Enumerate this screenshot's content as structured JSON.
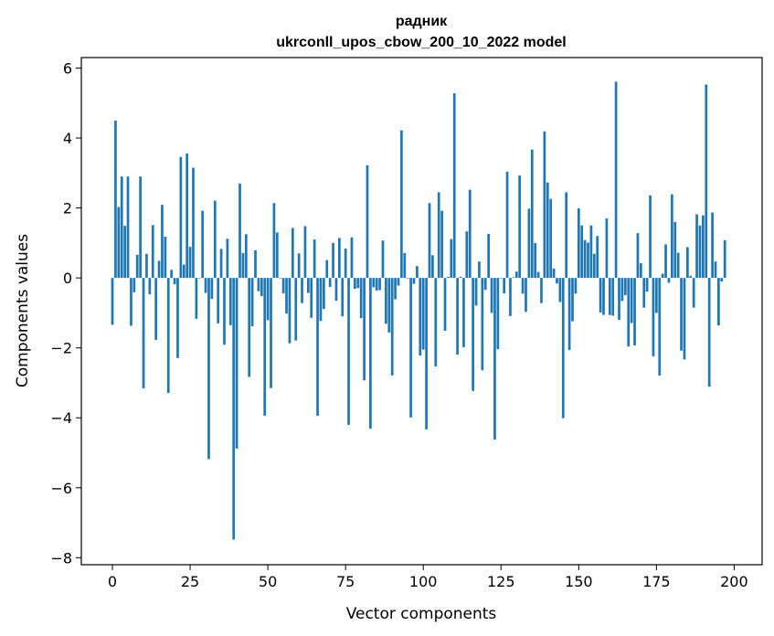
{
  "chart_data": {
    "type": "bar",
    "title": [
      "радник",
      "ukrconll_upos_cbow_200_10_2022 model"
    ],
    "xlabel": "Vector components",
    "ylabel": "Components values",
    "xlim": [
      -10,
      209
    ],
    "ylim": [
      -8.2,
      6.3
    ],
    "xticks": [
      0,
      25,
      50,
      75,
      100,
      125,
      150,
      175,
      200
    ],
    "yticks": [
      -8,
      -6,
      -4,
      -2,
      0,
      2,
      4,
      6
    ],
    "bar_color": "#1f77b4",
    "grid": false,
    "values": [
      -1.34,
      4.5,
      2.03,
      2.9,
      1.49,
      2.9,
      -1.37,
      -0.41,
      0.66,
      2.9,
      -3.16,
      0.69,
      -0.47,
      1.51,
      -1.77,
      0.49,
      2.09,
      1.18,
      -3.29,
      0.23,
      -0.18,
      -2.29,
      3.46,
      0.38,
      3.56,
      0.89,
      3.15,
      -1.17,
      0.0,
      1.92,
      -0.43,
      -5.18,
      -0.6,
      2.21,
      -1.3,
      0.83,
      -1.91,
      1.12,
      -1.35,
      -7.48,
      -4.88,
      2.7,
      0.71,
      1.25,
      -2.83,
      -1.38,
      0.79,
      -0.38,
      -0.52,
      -3.94,
      -1.21,
      -3.15,
      2.14,
      1.3,
      0.0,
      -0.44,
      -1.02,
      -1.87,
      1.43,
      -1.79,
      0.7,
      -0.72,
      1.48,
      -0.43,
      -1.14,
      1.1,
      -3.94,
      -1.23,
      -0.89,
      0.51,
      -0.26,
      1.0,
      -0.65,
      1.14,
      -1.1,
      0.84,
      -4.2,
      1.16,
      -0.31,
      -0.29,
      -1.15,
      -2.93,
      3.22,
      -4.31,
      -0.27,
      -0.36,
      -0.35,
      1.07,
      -1.31,
      -1.56,
      -2.79,
      -0.61,
      -0.22,
      4.22,
      0.71,
      0.0,
      -3.99,
      -0.17,
      0.34,
      -2.22,
      -2.05,
      -4.33,
      2.14,
      0.65,
      -2.53,
      2.45,
      1.92,
      -1.51,
      0.03,
      1.11,
      5.28,
      -2.19,
      0.03,
      -1.98,
      1.33,
      2.52,
      -3.23,
      -0.79,
      0.47,
      -2.64,
      -0.34,
      1.26,
      -1.0,
      -4.62,
      -2.04,
      0.0,
      -0.44,
      3.04,
      -1.09,
      0.02,
      0.18,
      2.93,
      -0.45,
      -0.97,
      1.98,
      3.67,
      1.0,
      0.17,
      -0.72,
      4.19,
      2.73,
      2.26,
      0.27,
      -0.16,
      -0.69,
      -4.01,
      2.45,
      -2.06,
      -1.24,
      -0.45,
      1.99,
      1.5,
      1.08,
      1.01,
      1.5,
      0.69,
      1.2,
      -0.99,
      -1.06,
      1.7,
      -1.06,
      -1.08,
      5.61,
      -1.2,
      -0.66,
      -0.49,
      -1.96,
      -1.29,
      -1.93,
      1.28,
      0.42,
      -0.85,
      -0.39,
      2.36,
      -2.24,
      -1.0,
      -2.79,
      0.12,
      0.96,
      -0.14,
      2.39,
      1.6,
      0.72,
      -2.08,
      -2.33,
      0.88,
      0.06,
      -0.85,
      1.82,
      1.5,
      1.79,
      5.53,
      -3.11,
      1.87,
      0.47,
      -1.36,
      -0.1,
      1.08
    ]
  }
}
